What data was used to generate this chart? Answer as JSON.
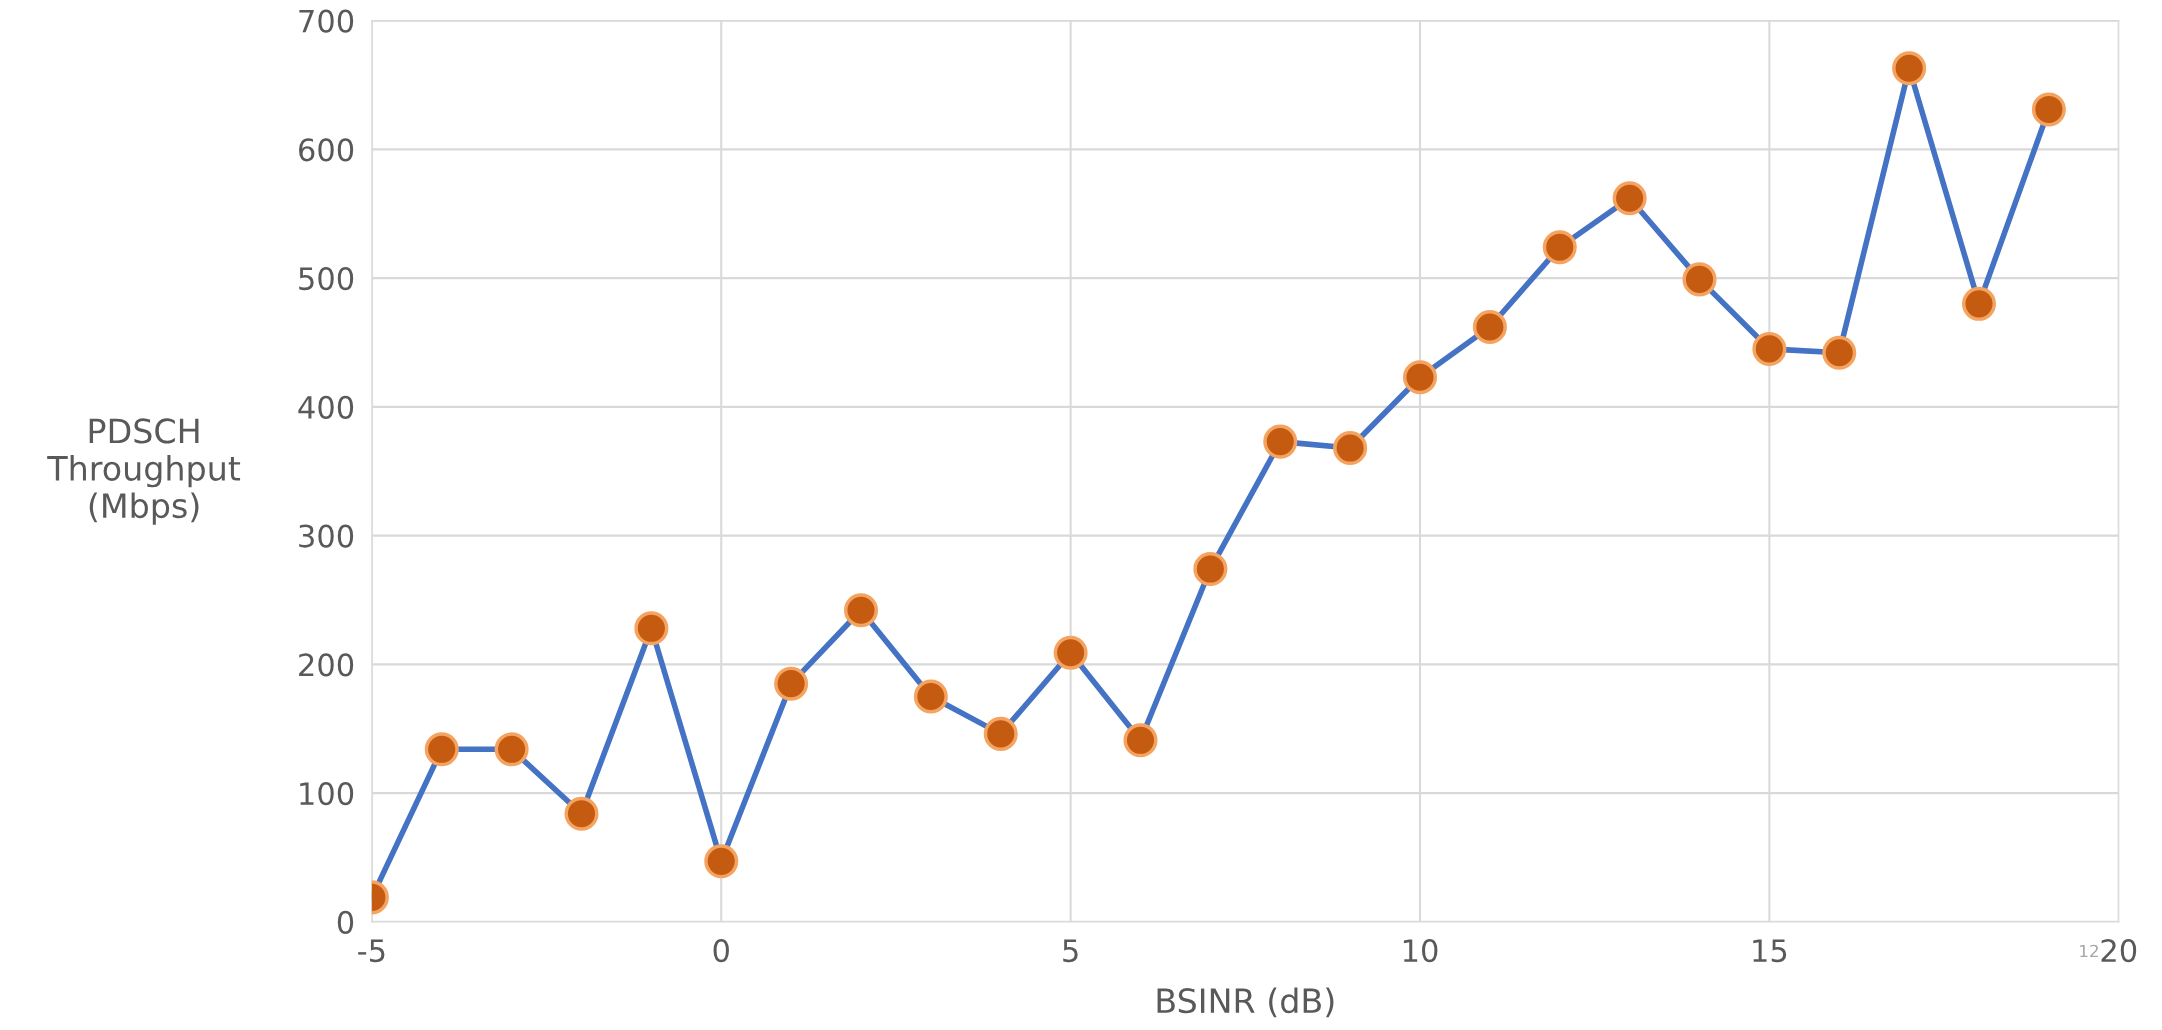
{
  "chart_data": {
    "type": "line",
    "xlabel": "BSINR (dB)",
    "ylabel": "PDSCH\nThroughput\n(Mbps)",
    "x": [
      -5,
      -4,
      -3,
      -2,
      -1,
      0,
      1,
      2,
      3,
      4,
      5,
      6,
      7,
      8,
      9,
      10,
      11,
      12,
      13,
      14,
      15,
      16,
      17,
      18,
      19
    ],
    "series": [
      {
        "color": "#4472c4",
        "values": [
          19,
          134,
          134,
          84,
          228,
          47,
          185,
          242,
          175,
          146,
          209,
          141,
          274,
          373,
          368,
          423,
          462,
          524,
          562,
          499,
          445,
          442,
          663,
          480,
          631
        ]
      }
    ],
    "xlim": [
      -5,
      20
    ],
    "xticks": [
      -5,
      0,
      5,
      10,
      15,
      20
    ],
    "ylim": [
      0,
      700
    ],
    "yticks": [
      0,
      100,
      200,
      300,
      400,
      500,
      600,
      700
    ],
    "grid": true,
    "marker": "circle",
    "line_style": "solid",
    "annotations": [
      "12"
    ]
  }
}
